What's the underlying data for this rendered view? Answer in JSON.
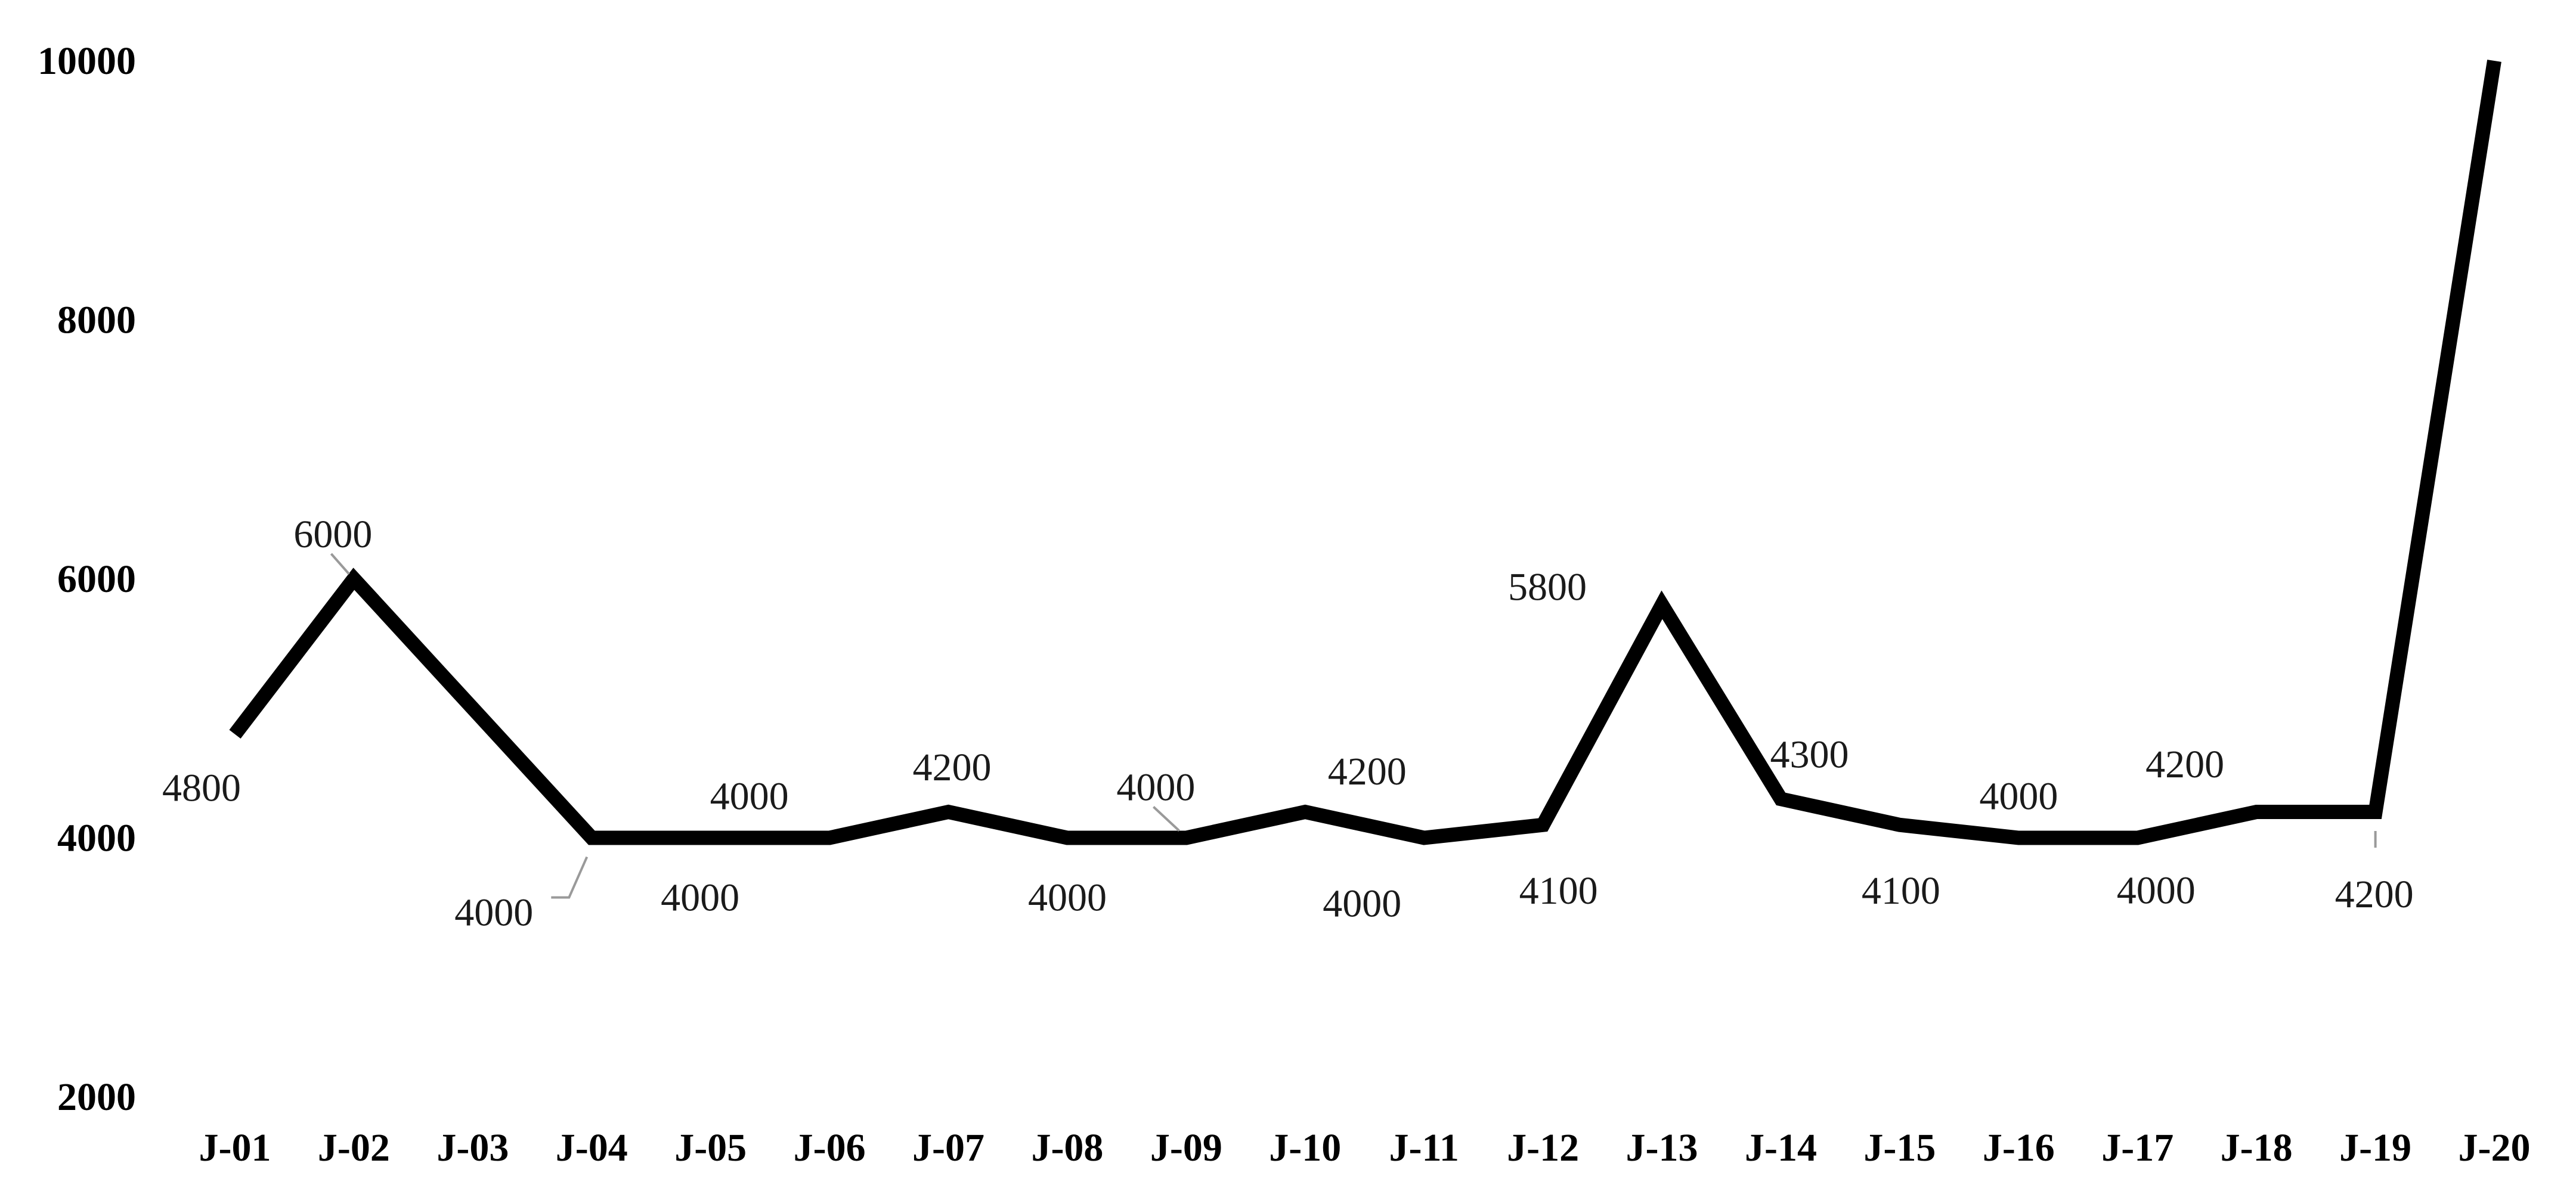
{
  "chart_data": {
    "type": "line",
    "title": "",
    "xlabel": "",
    "ylabel": "",
    "categories": [
      "J-01",
      "J-02",
      "J-03",
      "J-04",
      "J-05",
      "J-06",
      "J-07",
      "J-08",
      "J-09",
      "J-10",
      "J-11",
      "J-12",
      "J-13",
      "J-14",
      "J-15",
      "J-16",
      "J-17",
      "J-18",
      "J-19",
      "J-20"
    ],
    "series": [
      {
        "values": [
          4800,
          6000,
          5000,
          4000,
          4000,
          4000,
          4200,
          4000,
          4000,
          4200,
          4000,
          4100,
          5800,
          4300,
          4100,
          4000,
          4000,
          4200,
          4200,
          10000
        ],
        "color": "#000000"
      }
    ],
    "data_labels": [
      "4800",
      "6000",
      "",
      "4000",
      "4000",
      "4000",
      "4200",
      "4000",
      "4000",
      "4200",
      "4000",
      "4100",
      "5800",
      "4300",
      "4100",
      "4000",
      "4000",
      "4200",
      "4200",
      ""
    ],
    "ylim": [
      2000,
      10000
    ],
    "yticks": [
      "2000",
      "4000",
      "6000",
      "8000",
      "10000"
    ],
    "grid": false,
    "legend": "none"
  }
}
